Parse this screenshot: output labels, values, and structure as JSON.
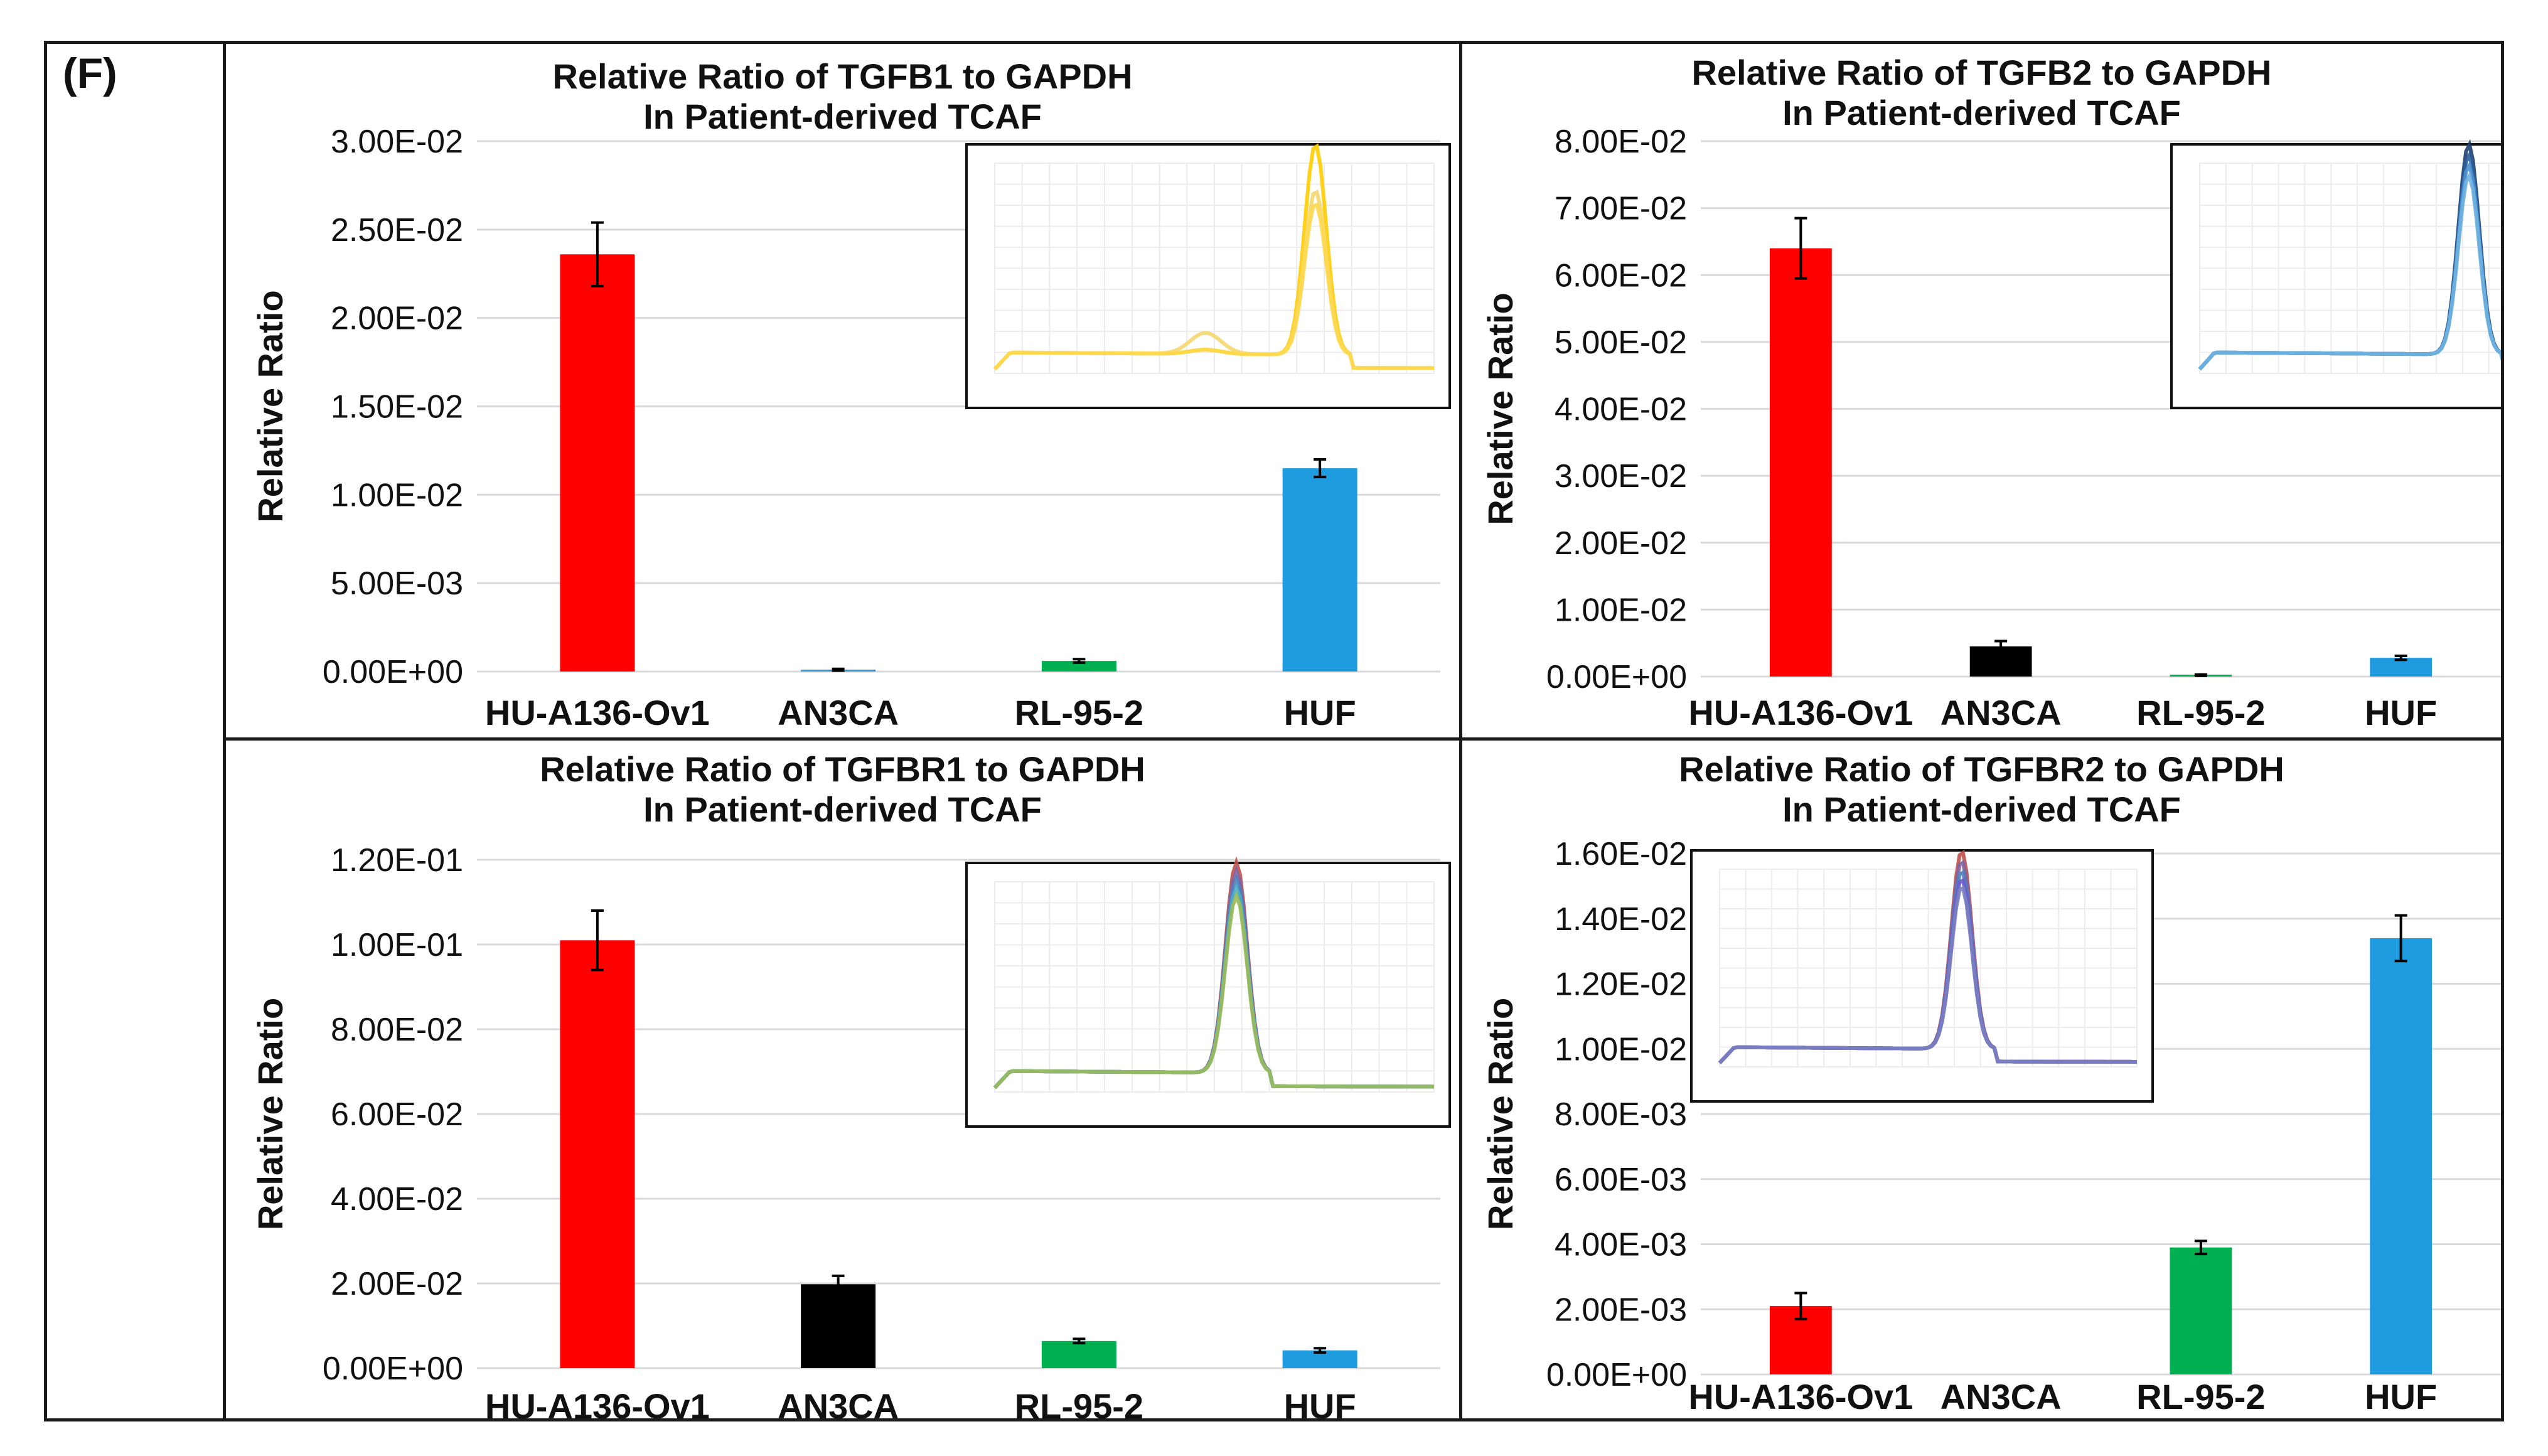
{
  "figure": {
    "panel_label": "(F)"
  },
  "chart_data": [
    {
      "type": "bar",
      "title": "Relative Ratio of TGFB1 to GAPDH",
      "subtitle": "In Patient-derived TCAF",
      "ylabel": "Relative Ratio",
      "xlabel": "",
      "categories": [
        "HU-A136-Ov1",
        "AN3CA",
        "RL-95-2",
        "HUF"
      ],
      "values": [
        0.0236,
        0.0001,
        0.0006,
        0.0115
      ],
      "errors": [
        0.0018,
        5e-05,
        0.0001,
        0.0005
      ],
      "colors": [
        "#ff0000",
        "#2f9bd6",
        "#00b050",
        "#1f9be0"
      ],
      "ylim": [
        0,
        0.03
      ],
      "yticks": [
        0,
        0.005,
        0.01,
        0.015,
        0.02,
        0.025,
        0.03
      ],
      "ytick_labels": [
        "0.00E+00",
        "5.00E-03",
        "1.00E-02",
        "1.50E-02",
        "2.00E-02",
        "2.50E-02",
        "3.00E-02"
      ],
      "grid": true,
      "inset": {
        "kind": "melt-curve",
        "colors": [
          "#ffcc00",
          "#f5d76e",
          "#ffd84d"
        ],
        "peak_pos": 0.73,
        "peak_heights": [
          1.0,
          0.78,
          0.72
        ],
        "shoulder": 0.1
      }
    },
    {
      "type": "bar",
      "title": "Relative Ratio of TGFB2 to GAPDH",
      "subtitle": "In Patient-derived TCAF",
      "ylabel": "Relative Ratio",
      "xlabel": "",
      "categories": [
        "HU-A136-Ov1",
        "AN3CA",
        "RL-95-2",
        "HUF"
      ],
      "values": [
        0.064,
        0.0045,
        0.0002,
        0.0028
      ],
      "errors": [
        0.0045,
        0.0008,
        0.0001,
        0.0003
      ],
      "colors": [
        "#ff0000",
        "#000000",
        "#00b050",
        "#1f9be0"
      ],
      "ylim": [
        0,
        0.08
      ],
      "yticks": [
        0,
        0.01,
        0.02,
        0.03,
        0.04,
        0.05,
        0.06,
        0.07,
        0.08
      ],
      "ytick_labels": [
        "0.00E+00",
        "1.00E-02",
        "2.00E-02",
        "3.00E-02",
        "4.00E-02",
        "5.00E-02",
        "6.00E-02",
        "7.00E-02",
        "8.00E-02"
      ],
      "grid": true,
      "inset": {
        "kind": "melt-curve",
        "colors": [
          "#1f3f6e",
          "#2a5d9a",
          "#4a8fcf",
          "#6fb2e0"
        ],
        "peak_pos": 0.64,
        "peak_heights": [
          1.0,
          0.95,
          0.9,
          0.85
        ],
        "shoulder": 0.0
      }
    },
    {
      "type": "bar",
      "title": "Relative Ratio of TGFBR1 to GAPDH",
      "subtitle": "In Patient-derived TCAF",
      "ylabel": "Relative Ratio",
      "xlabel": "",
      "categories": [
        "HU-A136-Ov1",
        "AN3CA",
        "RL-95-2",
        "HUF"
      ],
      "values": [
        0.101,
        0.0198,
        0.0064,
        0.0042
      ],
      "errors": [
        0.007,
        0.002,
        0.0005,
        0.0005
      ],
      "colors": [
        "#ff0000",
        "#000000",
        "#00b050",
        "#1f9be0"
      ],
      "ylim": [
        0,
        0.12
      ],
      "yticks": [
        0,
        0.02,
        0.04,
        0.06,
        0.08,
        0.1,
        0.12
      ],
      "ytick_labels": [
        "0.00E+00",
        "2.00E-02",
        "4.00E-02",
        "6.00E-02",
        "8.00E-02",
        "1.00E-01",
        "1.20E-01"
      ],
      "grid": true,
      "inset": {
        "kind": "melt-curve",
        "colors": [
          "#c0504d",
          "#8064a2",
          "#4f81bd",
          "#4bacc6",
          "#9bbb59"
        ],
        "peak_pos": 0.55,
        "peak_heights": [
          1.0,
          0.96,
          0.92,
          0.88,
          0.84
        ],
        "shoulder": 0.0
      }
    },
    {
      "type": "bar",
      "title": "Relative Ratio of TGFBR2 to GAPDH",
      "subtitle": "In Patient-derived TCAF",
      "ylabel": "Relative Ratio",
      "xlabel": "",
      "categories": [
        "HU-A136-Ov1",
        "AN3CA",
        "RL-95-2",
        "HUF"
      ],
      "values": [
        0.0021,
        0.0,
        0.0039,
        0.0134
      ],
      "errors": [
        0.0004,
        0.0,
        0.0002,
        0.0007
      ],
      "colors": [
        "#ff0000",
        "#000000",
        "#00b050",
        "#1f9be0"
      ],
      "ylim": [
        0,
        0.016
      ],
      "yticks": [
        0,
        0.002,
        0.004,
        0.006,
        0.008,
        0.01,
        0.012,
        0.014,
        0.016
      ],
      "ytick_labels": [
        "0.00E+00",
        "2.00E-03",
        "4.00E-03",
        "6.00E-03",
        "8.00E-03",
        "1.00E-02",
        "1.20E-02",
        "1.40E-02",
        "1.60E-02"
      ],
      "grid": true,
      "inset": {
        "kind": "melt-curve",
        "colors": [
          "#c0504d",
          "#8064a2",
          "#4f81bd",
          "#6a5acd",
          "#7a7fc0"
        ],
        "peak_pos": 0.58,
        "peak_heights": [
          1.0,
          0.95,
          0.9,
          0.86,
          0.82
        ],
        "shoulder": 0.0
      }
    }
  ]
}
